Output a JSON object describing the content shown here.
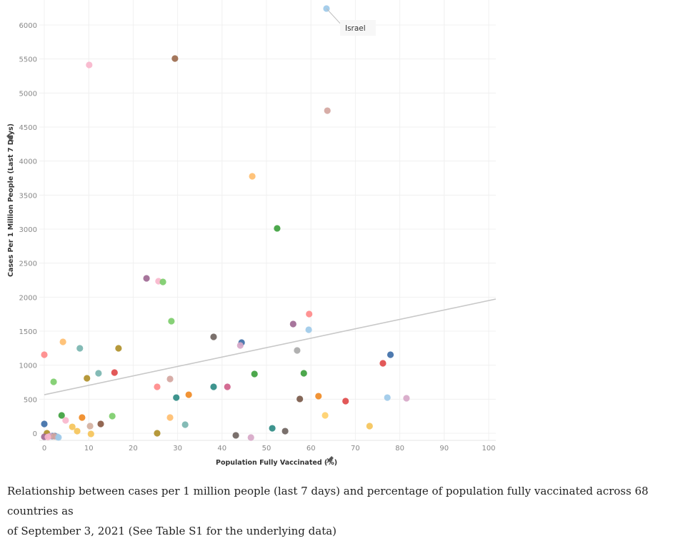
{
  "chart_data": {
    "type": "scatter",
    "title": "",
    "xlabel": "Population Fully Vaccinated (%)",
    "ylabel": "Cases Per 1 Million People (Last 7 Days)",
    "xlim": [
      -1,
      101
    ],
    "ylim": [
      -80,
      6290
    ],
    "xticks": [
      0,
      10,
      20,
      30,
      40,
      50,
      60,
      70,
      80,
      90,
      100
    ],
    "yticks": [
      0,
      500,
      1000,
      1500,
      2000,
      2500,
      3000,
      3500,
      4000,
      4500,
      5000,
      5500,
      6000
    ],
    "grid": true,
    "trendline": {
      "x": [
        0,
        101.6
      ],
      "y": [
        566,
        1972
      ],
      "color": "#c8c8c8"
    },
    "annotation": {
      "label": "Israel",
      "x": 63.5,
      "y": 6242
    },
    "points": [
      [
        63.5,
        6242,
        "#9ecae9"
      ],
      [
        29.4,
        5507,
        "#9c6b4e"
      ],
      [
        10.1,
        5413,
        "#f8b6cc"
      ],
      [
        63.7,
        4741,
        "#d4a6a0"
      ],
      [
        46.8,
        3776,
        "#ffbe6f"
      ],
      [
        52.4,
        3011,
        "#3ea13e"
      ],
      [
        23.0,
        2276,
        "#a06994"
      ],
      [
        25.7,
        2234,
        "#f8b6cc"
      ],
      [
        26.7,
        2224,
        "#7dcd6b"
      ],
      [
        28.6,
        1647,
        "#7dcd6b"
      ],
      [
        59.6,
        1752,
        "#ff8a8a"
      ],
      [
        56.0,
        1605,
        "#a06994"
      ],
      [
        59.5,
        1521,
        "#9ecae9"
      ],
      [
        56.9,
        1217,
        "#aaaaaa"
      ],
      [
        38.1,
        1416,
        "#6f6460"
      ],
      [
        44.4,
        1332,
        "#3f6fa8"
      ],
      [
        44.1,
        1290,
        "#d7a8c8"
      ],
      [
        0,
        1154,
        "#ff8a8a"
      ],
      [
        4.2,
        1343,
        "#ffbe6f"
      ],
      [
        8.0,
        1248,
        "#7ab5b0"
      ],
      [
        16.7,
        1248,
        "#b0902a"
      ],
      [
        2.1,
        755,
        "#7dcd6b"
      ],
      [
        9.6,
        808,
        "#b0902a"
      ],
      [
        12.2,
        881,
        "#7ab5b0"
      ],
      [
        15.8,
        892,
        "#e04a4a"
      ],
      [
        28.3,
        797,
        "#d4a6a0"
      ],
      [
        25.4,
        682,
        "#ff8a8a"
      ],
      [
        29.7,
        524,
        "#2e8b84"
      ],
      [
        32.5,
        566,
        "#f08a24"
      ],
      [
        38.1,
        682,
        "#2e8b84"
      ],
      [
        41.2,
        682,
        "#d0608a"
      ],
      [
        47.3,
        871,
        "#3ea13e"
      ],
      [
        58.4,
        881,
        "#3ea13e"
      ],
      [
        57.5,
        504,
        "#7a5a4a"
      ],
      [
        61.7,
        545,
        "#f08a24"
      ],
      [
        67.8,
        472,
        "#e04a4a"
      ],
      [
        76.2,
        1028,
        "#e04a4a"
      ],
      [
        77.9,
        1154,
        "#3f6fa8"
      ],
      [
        77.2,
        524,
        "#9ecae9"
      ],
      [
        81.5,
        514,
        "#d7a8c8"
      ],
      [
        63.2,
        262,
        "#ffd06b"
      ],
      [
        73.2,
        105,
        "#f5c45a"
      ],
      [
        0,
        136,
        "#3f6fa8"
      ],
      [
        3.9,
        262,
        "#3ea13e"
      ],
      [
        4.8,
        189,
        "#f8b6cc"
      ],
      [
        8.5,
        231,
        "#f08a24"
      ],
      [
        6.3,
        94,
        "#f5c45a"
      ],
      [
        7.4,
        31,
        "#f5c45a"
      ],
      [
        10.3,
        105,
        "#d4b0a0"
      ],
      [
        12.7,
        136,
        "#8a5a44"
      ],
      [
        15.3,
        252,
        "#7dcd6b"
      ],
      [
        10.5,
        -10,
        "#f5c45a"
      ],
      [
        25.4,
        0,
        "#b0902a"
      ],
      [
        28.3,
        231,
        "#ffbe6f"
      ],
      [
        31.7,
        126,
        "#7ab5b0"
      ],
      [
        43.1,
        -31,
        "#6f6460"
      ],
      [
        46.5,
        -63,
        "#d7a8c8"
      ],
      [
        51.3,
        73,
        "#2e8b84"
      ],
      [
        54.2,
        31,
        "#6f6460"
      ],
      [
        0.6,
        0,
        "#b0902a"
      ],
      [
        0,
        -52,
        "#a06994"
      ],
      [
        1.8,
        -42,
        "#3f6fa8"
      ],
      [
        2.4,
        -42,
        "#3f6fa8"
      ],
      [
        2.9,
        -52,
        "#9ecae9"
      ],
      [
        1.3,
        -42,
        "#d7a8c8"
      ],
      [
        2.2,
        -45,
        "#d4a6a0"
      ],
      [
        3.2,
        -62,
        "#9ecae9"
      ],
      [
        0.8,
        -55,
        "#f8b6cc"
      ]
    ]
  },
  "caption": {
    "line1": "Relationship between cases per 1 million people (last 7 days) and percentage of population fully vaccinated across 68 countries as",
    "line2": "of September 3, 2021 (See Table S1 for the underlying data)"
  }
}
